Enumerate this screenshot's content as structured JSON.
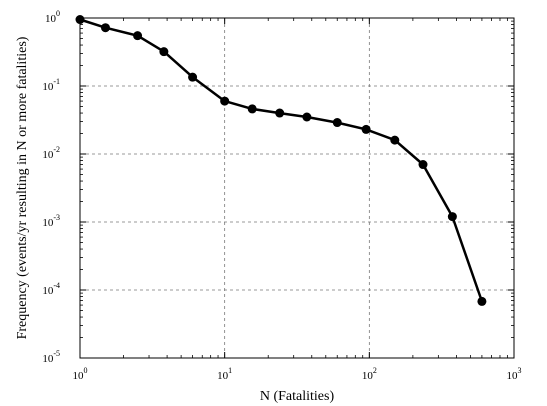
{
  "chart_data": {
    "type": "line",
    "xlabel": "N (Fatalities)",
    "ylabel": "Frequency (events/yr resulting in N or more fatalities)",
    "xscale": "log",
    "yscale": "log",
    "xlim": [
      1,
      1000
    ],
    "ylim": [
      1e-05,
      1
    ],
    "grid": true,
    "line_color": "#000000",
    "x_ticks": [
      {
        "value": 1,
        "base": "10",
        "exp": "0"
      },
      {
        "value": 10,
        "base": "10",
        "exp": "1"
      },
      {
        "value": 100,
        "base": "10",
        "exp": "2"
      },
      {
        "value": 1000,
        "base": "10",
        "exp": "3"
      }
    ],
    "y_ticks": [
      {
        "value": 1,
        "base": "10",
        "exp": "0"
      },
      {
        "value": 0.1,
        "base": "10",
        "exp": "-1"
      },
      {
        "value": 0.01,
        "base": "10",
        "exp": "-2"
      },
      {
        "value": 0.001,
        "base": "10",
        "exp": "-3"
      },
      {
        "value": 0.0001,
        "base": "10",
        "exp": "-4"
      },
      {
        "value": 1e-05,
        "base": "10",
        "exp": "-5"
      }
    ],
    "series": [
      {
        "x": [
          1.0,
          1.5,
          2.5,
          3.8,
          6.0,
          10.0,
          15.5,
          24.0,
          37.0,
          60.0,
          95.0,
          150.0,
          235.0,
          375.0,
          600.0
        ],
        "y": [
          0.95,
          0.72,
          0.55,
          0.32,
          0.135,
          0.06,
          0.046,
          0.04,
          0.035,
          0.029,
          0.023,
          0.016,
          0.007,
          0.0012,
          6.8e-05
        ]
      }
    ]
  }
}
